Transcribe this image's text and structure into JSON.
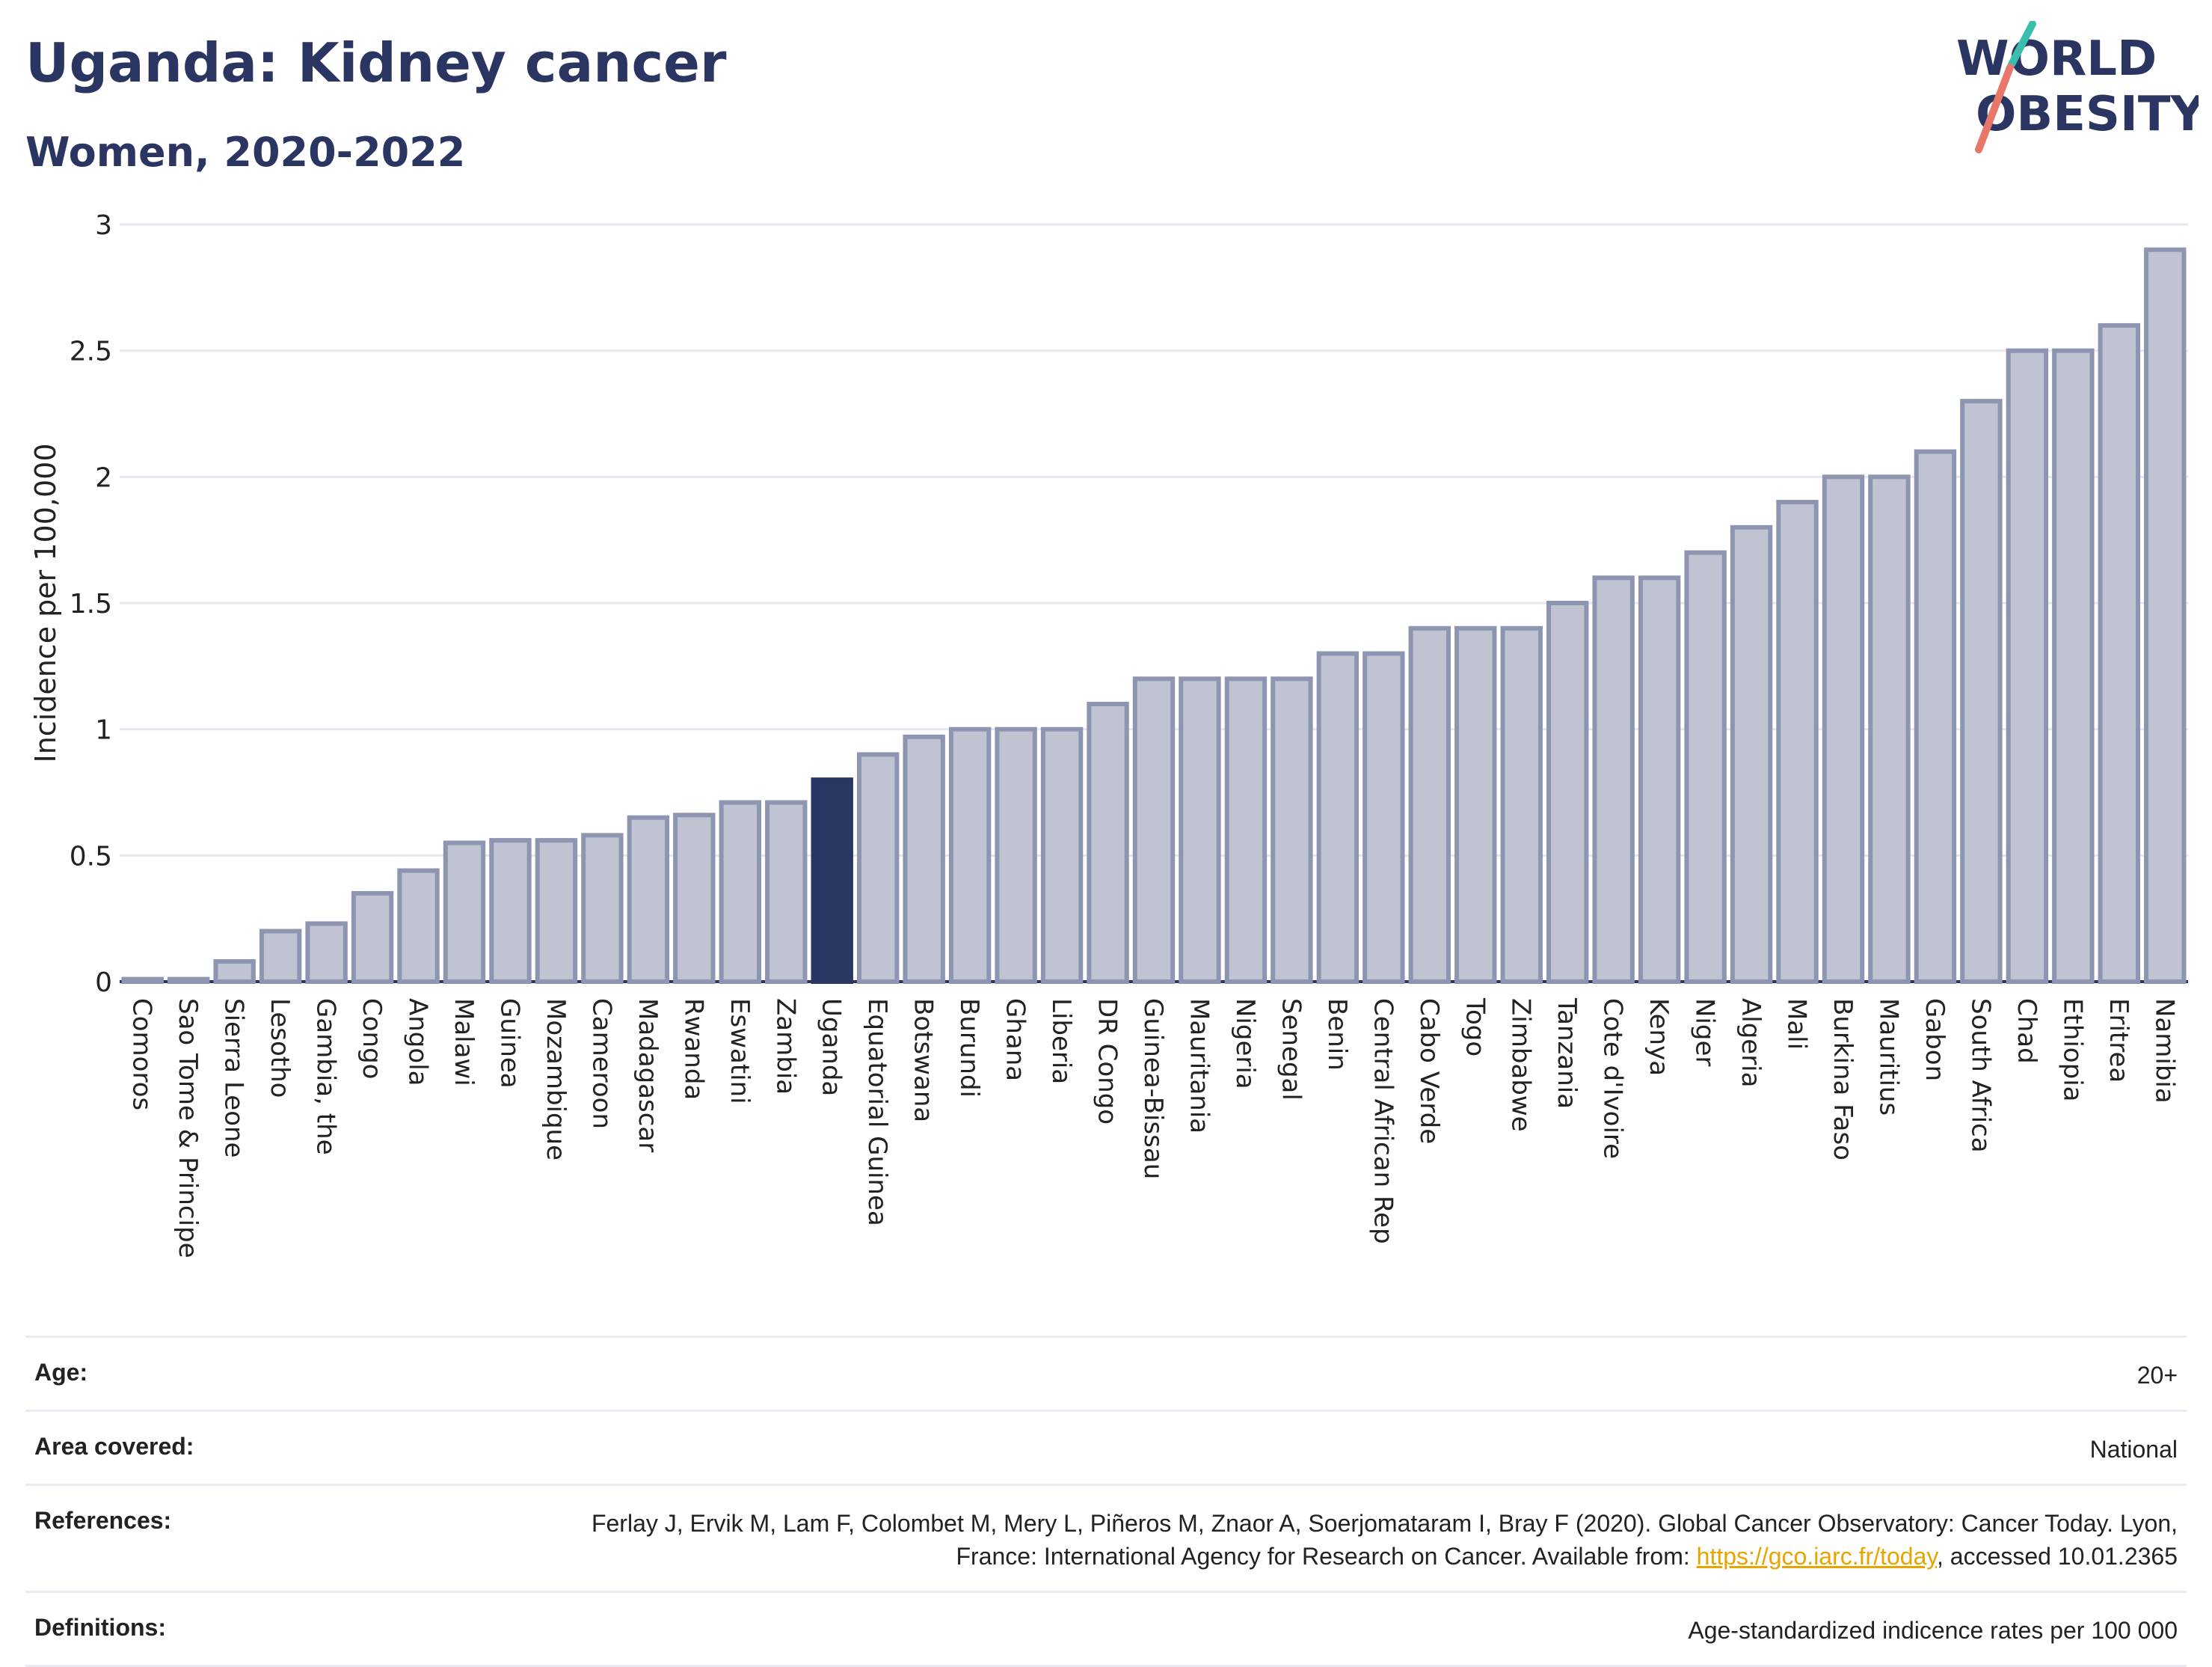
{
  "title": "Uganda: Kidney cancer",
  "subtitle": "Women, 2020-2022",
  "logo": {
    "line1": "WORLD",
    "line2": "OBESITY"
  },
  "colors": {
    "bar": "#bfc3d2",
    "bar_border": "#8e95b0",
    "highlight": "#2b3562",
    "text": "#2b3562",
    "link": "#e8a400"
  },
  "chart_data": {
    "type": "bar",
    "ylabel": "Incidence per 100,000",
    "ylim": [
      0,
      3
    ],
    "yticks": [
      0,
      0.5,
      1,
      1.5,
      2,
      2.5,
      3
    ],
    "highlight": "Uganda",
    "categories": [
      "Comoros",
      "Sao Tome & Principe",
      "Sierra Leone",
      "Lesotho",
      "Gambia, the",
      "Congo",
      "Angola",
      "Malawi",
      "Guinea",
      "Mozambique",
      "Cameroon",
      "Madagascar",
      "Rwanda",
      "Eswatini",
      "Zambia",
      "Uganda",
      "Equatorial Guinea",
      "Botswana",
      "Burundi",
      "Ghana",
      "Liberia",
      "DR Congo",
      "Guinea-Bissau",
      "Mauritania",
      "Nigeria",
      "Senegal",
      "Benin",
      "Central African Rep",
      "Cabo Verde",
      "Togo",
      "Zimbabwe",
      "Tanzania",
      "Cote d'Ivoire",
      "Kenya",
      "Niger",
      "Algeria",
      "Mali",
      "Burkina Faso",
      "Mauritius",
      "Gabon",
      "South Africa",
      "Chad",
      "Ethiopia",
      "Eritrea",
      "Namibia"
    ],
    "values": [
      0.01,
      0.01,
      0.08,
      0.2,
      0.23,
      0.35,
      0.44,
      0.55,
      0.56,
      0.56,
      0.58,
      0.65,
      0.66,
      0.71,
      0.71,
      0.8,
      0.9,
      0.97,
      1.0,
      1.0,
      1.0,
      1.1,
      1.2,
      1.2,
      1.2,
      1.2,
      1.3,
      1.3,
      1.4,
      1.4,
      1.4,
      1.5,
      1.6,
      1.6,
      1.7,
      1.8,
      1.9,
      2.0,
      2.0,
      2.1,
      2.3,
      2.5,
      2.5,
      2.6,
      2.9
    ]
  },
  "meta": [
    {
      "label": "Age:",
      "value": "20+"
    },
    {
      "label": "Area covered:",
      "value": "National"
    },
    {
      "label": "References:",
      "value": "Ferlay J, Ervik M, Lam F, Colombet M, Mery L, Piñeros M, Znaor A, Soerjomataram I, Bray F (2020). Global Cancer Observatory: Cancer Today. Lyon, France: International Agency for Research on Cancer. Available from: ",
      "link": "https://gco.iarc.fr/today",
      "suffix": ", accessed 10.01.2365"
    },
    {
      "label": "Definitions:",
      "value": "Age-standardized indicence rates per 100 000"
    }
  ]
}
